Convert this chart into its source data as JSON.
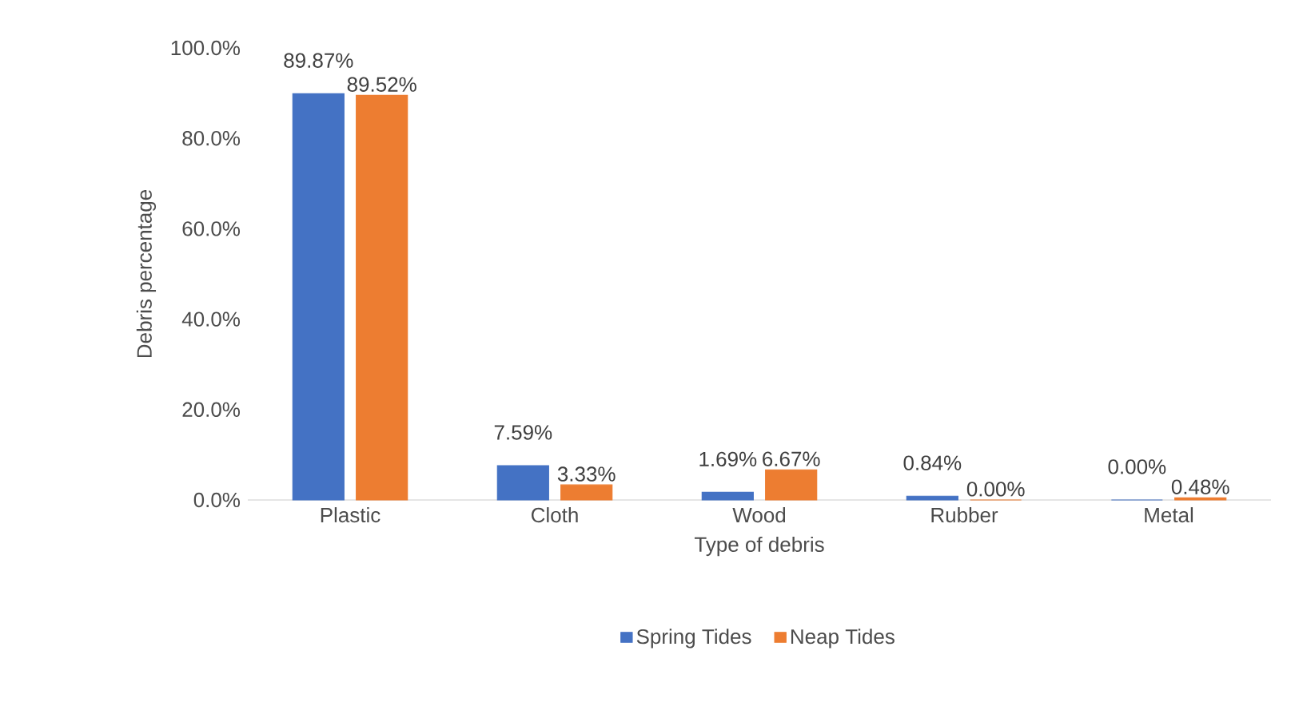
{
  "chart_data": {
    "type": "bar",
    "xlabel": "Type of debris",
    "ylabel": "Debris percentage",
    "categories": [
      "Plastic",
      "Cloth",
      "Wood",
      "Rubber",
      "Metal"
    ],
    "series": [
      {
        "name": "Spring Tides",
        "color": "#4472c4",
        "values": [
          89.87,
          7.59,
          1.69,
          0.84,
          0.0
        ],
        "value_labels": [
          "89.87%",
          "7.59%",
          "1.69%",
          "0.84%",
          "0.00%"
        ]
      },
      {
        "name": "Neap Tides",
        "color": "#ed7d31",
        "values": [
          89.52,
          3.33,
          6.67,
          0.0,
          0.48
        ],
        "value_labels": [
          "89.52%",
          "3.33%",
          "6.67%",
          "0.00%",
          "0.48%"
        ]
      }
    ],
    "ylim": [
      0,
      100
    ],
    "yticks": [
      {
        "value": 0,
        "label": "0.0%"
      },
      {
        "value": 20,
        "label": "20.0%"
      },
      {
        "value": 40,
        "label": "40.0%"
      },
      {
        "value": 60,
        "label": "60.0%"
      },
      {
        "value": 80,
        "label": "80.0%"
      },
      {
        "value": 100,
        "label": "100.0%"
      }
    ],
    "grid": false,
    "legend": "bottom"
  }
}
